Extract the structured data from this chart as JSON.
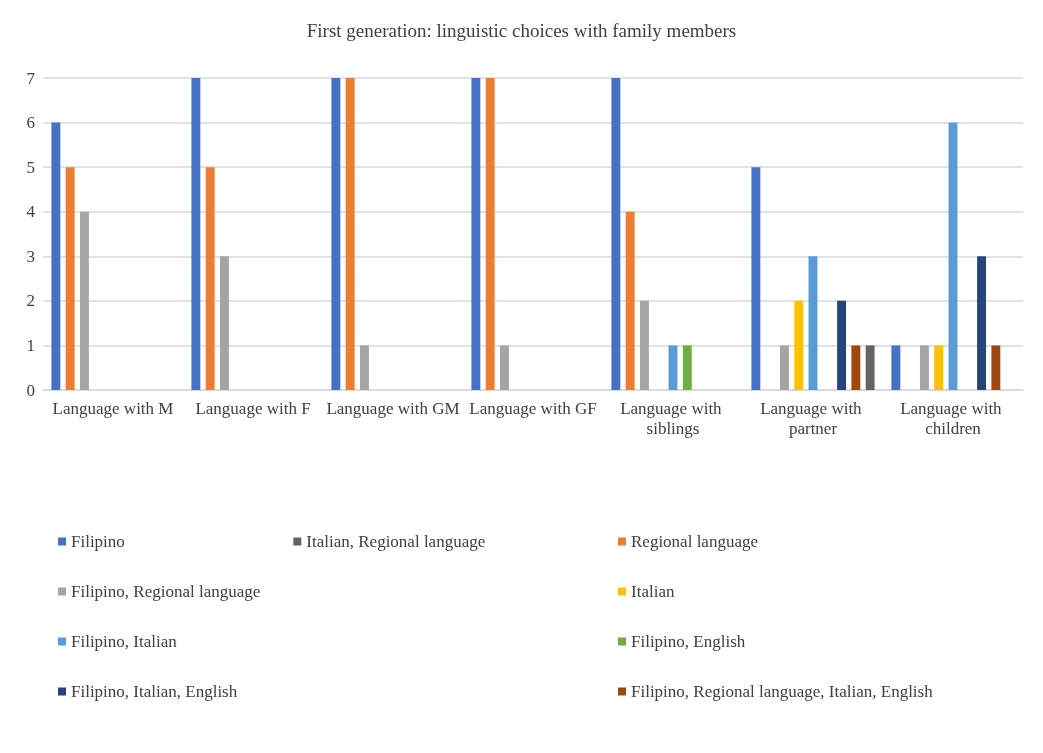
{
  "chart_data": {
    "type": "bar",
    "title": "First generation: linguistic choices with family members",
    "categories": [
      "Language with M",
      "Language with F",
      "Language with GM",
      "Language with GF",
      "Language with siblings",
      "Language with partner",
      "Language with children"
    ],
    "series": [
      {
        "name": "Filipino",
        "color": "#4472c4",
        "values": [
          6,
          7,
          7,
          7,
          7,
          5,
          1
        ]
      },
      {
        "name": "Regional language",
        "color": "#ed7d31",
        "values": [
          5,
          5,
          7,
          7,
          4,
          0,
          0
        ]
      },
      {
        "name": "Filipino, Regional language",
        "color": "#a5a5a5",
        "values": [
          4,
          3,
          1,
          1,
          2,
          1,
          1
        ]
      },
      {
        "name": "Italian",
        "color": "#ffc000",
        "values": [
          0,
          0,
          0,
          0,
          0,
          2,
          1
        ]
      },
      {
        "name": "Filipino, Italian",
        "color": "#5b9bd5",
        "values": [
          0,
          0,
          0,
          0,
          1,
          3,
          6
        ]
      },
      {
        "name": "Filipino, English",
        "color": "#70ad47",
        "values": [
          0,
          0,
          0,
          0,
          1,
          0,
          0
        ]
      },
      {
        "name": "Filipino, Italian, English",
        "color": "#264478",
        "values": [
          0,
          0,
          0,
          0,
          0,
          2,
          3
        ]
      },
      {
        "name": "Filipino, Regional language, Italian, English",
        "color": "#9e480e",
        "values": [
          0,
          0,
          0,
          0,
          0,
          1,
          1
        ]
      },
      {
        "name": "Italian, Regional language",
        "color": "#636363",
        "values": [
          0,
          0,
          0,
          0,
          0,
          1,
          0
        ]
      }
    ],
    "ylim": [
      0,
      7
    ],
    "yticks": [
      0,
      1,
      2,
      3,
      4,
      5,
      6,
      7
    ],
    "grid": "y",
    "legend": "bottom"
  }
}
